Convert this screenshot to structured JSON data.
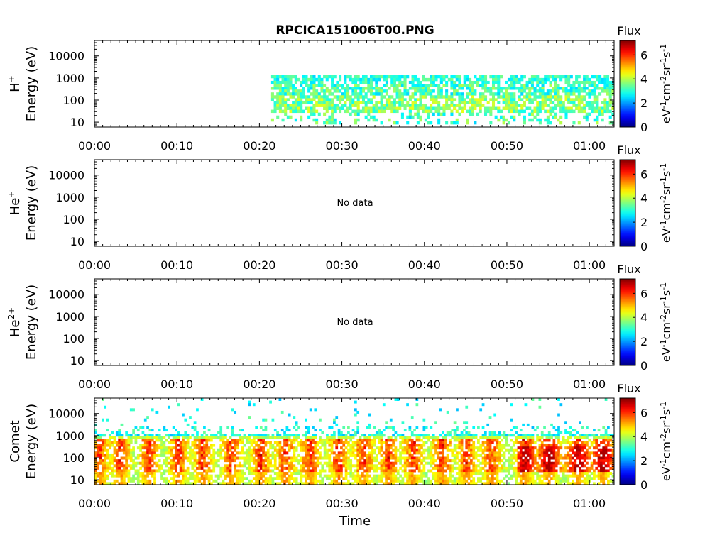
{
  "title": "RPCICA151006T00.PNG",
  "xlabel": "Time",
  "x_ticks": [
    "00:00",
    "00:10",
    "00:20",
    "00:30",
    "00:40",
    "00:50",
    "01:00"
  ],
  "y_ticks": [
    "10000",
    "1000",
    "100",
    "10"
  ],
  "y_unit_label": "Energy (eV)",
  "colorbar": {
    "title": "Flux",
    "ticks": [
      "6",
      "4",
      "2",
      "0"
    ],
    "label_parts": [
      "eV",
      "-1",
      "cm",
      "-2",
      "sr",
      "-1",
      "s",
      "-1"
    ],
    "range": [
      0,
      7.2
    ],
    "colormap": "jet"
  },
  "panels": [
    {
      "species": "H",
      "charge": "+",
      "no_data_text": ""
    },
    {
      "species": "He",
      "charge": "+",
      "no_data_text": "No data"
    },
    {
      "species": "He",
      "charge": "2+",
      "no_data_text": "No data"
    },
    {
      "species": "Comet",
      "charge": "",
      "no_data_text": ""
    }
  ],
  "chart_data": [
    {
      "type": "heatmap",
      "panel": "H+",
      "x_range_minutes": [
        0,
        63
      ],
      "y_scale": "log",
      "y_range_eV": [
        6,
        50000
      ],
      "z_range_log_flux": [
        0,
        7.2
      ],
      "data_start_minutes": 21.3,
      "energy_band_eV": [
        20,
        1300
      ],
      "typical_log_flux": [
        2.5,
        4.2
      ],
      "peak_log_flux": 4.5
    },
    {
      "type": "heatmap",
      "panel": "He+",
      "x_range_minutes": [
        0,
        63
      ],
      "y_scale": "log",
      "y_range_eV": [
        6,
        50000
      ],
      "data": []
    },
    {
      "type": "heatmap",
      "panel": "He2+",
      "x_range_minutes": [
        0,
        63
      ],
      "y_scale": "log",
      "y_range_eV": [
        6,
        50000
      ],
      "data": []
    },
    {
      "type": "heatmap",
      "panel": "Comet",
      "x_range_minutes": [
        0,
        63
      ],
      "y_scale": "log",
      "y_range_eV": [
        6,
        50000
      ],
      "z_range_log_flux": [
        0,
        7.2
      ],
      "energy_band_eV": [
        6,
        20000
      ],
      "burst_times_minutes": [
        0.5,
        3,
        6.5,
        10,
        13,
        16.5,
        20,
        23,
        26,
        29.5,
        32.5,
        35.5,
        38.5,
        42,
        45,
        48,
        52,
        55,
        58.5,
        61.5
      ],
      "peak_log_flux": 6.7
    }
  ]
}
